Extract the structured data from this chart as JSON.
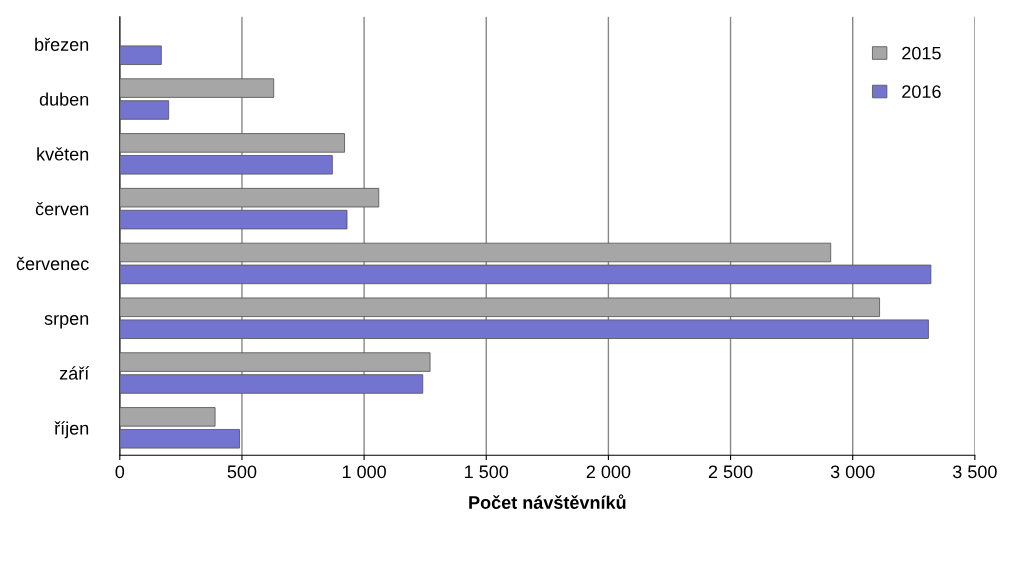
{
  "chart_data": {
    "type": "bar",
    "orientation": "horizontal",
    "xlabel": "Počet návštěvníků",
    "categories": [
      "březen",
      "duben",
      "květen",
      "červen",
      "červenec",
      "srpen",
      "září",
      "říjen"
    ],
    "series": [
      {
        "name": "2015",
        "color": "#a6a6a6",
        "values": [
          null,
          630,
          920,
          1060,
          2910,
          3110,
          1270,
          390
        ]
      },
      {
        "name": "2016",
        "color": "#7373d0",
        "values": [
          170,
          200,
          870,
          930,
          3320,
          3310,
          1240,
          490
        ]
      }
    ],
    "xlim": [
      0,
      3500
    ],
    "xticks": [
      0,
      {
        "value": 500,
        "label": "500"
      },
      {
        "value": 1000,
        "label": "1 000"
      },
      {
        "value": 1500,
        "label": "1 500"
      },
      {
        "value": 2000,
        "label": "2 000"
      },
      {
        "value": 2500,
        "label": "2 500"
      },
      {
        "value": 3000,
        "label": "3 000"
      },
      {
        "value": 3500,
        "label": "3 500"
      }
    ],
    "grid": "x",
    "legend": "top right"
  }
}
